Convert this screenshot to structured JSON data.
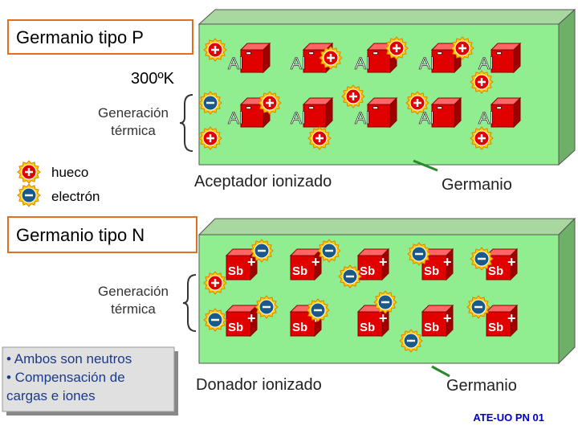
{
  "p_panel": {
    "title": "Germanio tipo P",
    "temperature": "300ºK",
    "generation": [
      "Generación",
      "térmica"
    ],
    "legend": {
      "hole": "hueco",
      "electron": "electrón"
    },
    "ion_label": "Al",
    "ion_charge": "-",
    "caption": "Aceptador ionizado",
    "material": "Germanio"
  },
  "n_panel": {
    "title": "Germanio tipo N",
    "generation": [
      "Generación",
      "térmica"
    ],
    "ion_label": "Sb",
    "ion_charge": "+",
    "caption": "Donador ionizado",
    "material": "Germanio"
  },
  "notes": [
    "• Ambos son neutros",
    "• Compensación de",
    "cargas e iones"
  ],
  "footer": "ATE-UO PN 01"
}
